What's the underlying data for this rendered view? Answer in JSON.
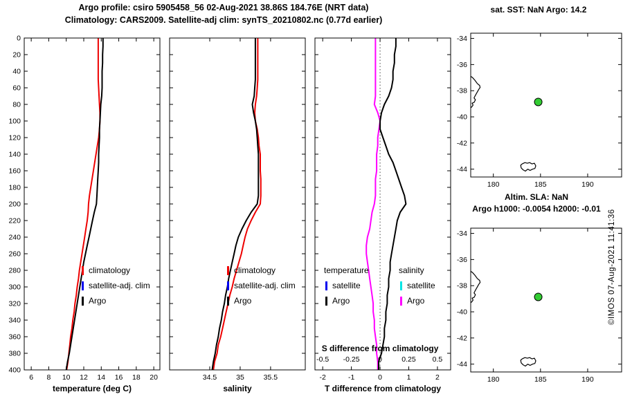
{
  "header": {
    "title1": "Argo profile: csiro 5905458_56 02-Aug-2021 38.86S 184.76E (NRT data)",
    "title2": "Climatology: CARS2009. Satellite-adj clim: synTS_20210802.nc (0.77d earlier)"
  },
  "footer": {
    "copyright": "©IMOS 07-Aug-2021 11:41:36"
  },
  "chart_data": [
    {
      "id": "temperature-profile",
      "type": "line",
      "xlabel": "temperature (deg C)",
      "xlim": [
        5.2,
        20.7
      ],
      "xticks": [
        6,
        8,
        10,
        12,
        14,
        16,
        18,
        20
      ],
      "ylim": [
        0,
        400
      ],
      "yticks": [
        0,
        20,
        40,
        60,
        80,
        100,
        120,
        140,
        160,
        180,
        200,
        220,
        240,
        260,
        280,
        300,
        320,
        340,
        360,
        380,
        400
      ],
      "show_ylabels": true,
      "depths": [
        0,
        10,
        20,
        30,
        40,
        50,
        60,
        70,
        80,
        90,
        100,
        110,
        120,
        130,
        140,
        150,
        160,
        170,
        180,
        190,
        200,
        210,
        220,
        230,
        240,
        250,
        260,
        270,
        280,
        290,
        300,
        310,
        320,
        330,
        340,
        350,
        360,
        370,
        380,
        390,
        400
      ],
      "series": [
        {
          "name": "climatology",
          "color": "#ee0000",
          "values": [
            13.65,
            13.65,
            13.65,
            13.65,
            13.65,
            13.65,
            13.7,
            13.75,
            13.8,
            13.85,
            13.85,
            13.8,
            13.7,
            13.55,
            13.4,
            13.25,
            13.1,
            12.95,
            12.8,
            12.65,
            12.55,
            12.5,
            12.4,
            12.25,
            12.1,
            11.95,
            11.8,
            11.65,
            11.5,
            11.4,
            11.25,
            11.15,
            11.0,
            10.9,
            10.75,
            10.65,
            10.5,
            10.4,
            10.3,
            10.2,
            10.05
          ]
        },
        {
          "name": "Argo",
          "color": "#000000",
          "values": [
            14.2,
            14.2,
            14.15,
            14.15,
            14.1,
            14.1,
            14.1,
            14.05,
            13.95,
            13.9,
            13.85,
            13.8,
            13.8,
            13.75,
            13.7,
            13.7,
            13.65,
            13.6,
            13.55,
            13.5,
            13.45,
            13.2,
            13.0,
            12.8,
            12.6,
            12.4,
            12.2,
            12.0,
            11.85,
            11.7,
            11.55,
            11.4,
            11.25,
            11.1,
            10.95,
            10.8,
            10.65,
            10.5,
            10.35,
            10.15,
            10.0
          ]
        }
      ],
      "legend": [
        {
          "label": "climatology",
          "color": "#ee0000"
        },
        {
          "label": "satellite-adj. clim",
          "color": "#0000ee"
        },
        {
          "label": "Argo",
          "color": "#000000"
        }
      ]
    },
    {
      "id": "salinity-profile",
      "type": "line",
      "xlabel": "salinity",
      "xlim": [
        33.84,
        36.07
      ],
      "xticks": [
        34.5,
        35,
        35.5
      ],
      "ylim": [
        0,
        400
      ],
      "yticks": [
        0,
        20,
        40,
        60,
        80,
        100,
        120,
        140,
        160,
        180,
        200,
        220,
        240,
        260,
        280,
        300,
        320,
        340,
        360,
        380,
        400
      ],
      "show_ylabels": false,
      "depths": [
        0,
        10,
        20,
        30,
        40,
        50,
        60,
        70,
        80,
        90,
        100,
        110,
        120,
        130,
        140,
        150,
        160,
        170,
        180,
        190,
        200,
        210,
        220,
        230,
        240,
        250,
        260,
        270,
        280,
        290,
        300,
        310,
        320,
        330,
        340,
        350,
        360,
        370,
        380,
        390,
        400
      ],
      "series": [
        {
          "name": "climatology",
          "color": "#ee0000",
          "values": [
            35.29,
            35.29,
            35.29,
            35.29,
            35.29,
            35.29,
            35.28,
            35.27,
            35.25,
            35.24,
            35.25,
            35.28,
            35.3,
            35.31,
            35.33,
            35.33,
            35.33,
            35.34,
            35.34,
            35.34,
            35.33,
            35.25,
            35.18,
            35.12,
            35.08,
            35.05,
            35.02,
            34.98,
            34.94,
            34.9,
            34.87,
            34.83,
            34.8,
            34.77,
            34.74,
            34.71,
            34.68,
            34.64,
            34.62,
            34.58,
            34.56
          ]
        },
        {
          "name": "Argo",
          "color": "#000000",
          "values": [
            35.25,
            35.25,
            35.25,
            35.25,
            35.25,
            35.25,
            35.24,
            35.23,
            35.2,
            35.22,
            35.25,
            35.27,
            35.28,
            35.29,
            35.3,
            35.3,
            35.3,
            35.3,
            35.3,
            35.3,
            35.28,
            35.18,
            35.1,
            35.03,
            34.97,
            34.93,
            34.9,
            34.87,
            34.84,
            34.81,
            34.79,
            34.76,
            34.74,
            34.71,
            34.69,
            34.66,
            34.64,
            34.61,
            34.59,
            34.56,
            34.54
          ]
        }
      ],
      "legend": [
        {
          "label": "climatology",
          "color": "#ee0000"
        },
        {
          "label": "satellite-adj. clim",
          "color": "#0000ee"
        },
        {
          "label": "Argo",
          "color": "#000000"
        }
      ]
    },
    {
      "id": "difference-profile",
      "type": "line",
      "xlabel": "T difference from climatology",
      "xlim": [
        -2.27,
        2.46
      ],
      "xticks": [
        -2,
        -1,
        0,
        1,
        2
      ],
      "ylim": [
        0,
        400
      ],
      "yticks": [
        0,
        20,
        40,
        60,
        80,
        100,
        120,
        140,
        160,
        180,
        200,
        220,
        240,
        260,
        280,
        300,
        320,
        340,
        360,
        380,
        400
      ],
      "show_ylabels": false,
      "zero_line": true,
      "secondary_axis": {
        "label": "S difference from climatology",
        "ticks": [
          -0.5,
          -0.25,
          0,
          0.25,
          0.5
        ],
        "scale": 4
      },
      "depths": [
        0,
        10,
        20,
        30,
        40,
        50,
        60,
        70,
        80,
        90,
        100,
        110,
        120,
        130,
        140,
        150,
        160,
        170,
        180,
        190,
        200,
        210,
        220,
        230,
        240,
        250,
        260,
        270,
        280,
        290,
        300,
        310,
        320,
        330,
        340,
        350,
        360,
        370,
        380,
        390,
        400
      ],
      "series": [
        {
          "name": "salinity Argo",
          "color": "#ff00ff",
          "scale": 4,
          "values": [
            -0.04,
            -0.04,
            -0.04,
            -0.04,
            -0.04,
            -0.04,
            -0.04,
            -0.04,
            -0.05,
            -0.02,
            0.0,
            -0.01,
            -0.02,
            -0.02,
            -0.03,
            -0.03,
            -0.03,
            -0.04,
            -0.04,
            -0.04,
            -0.05,
            -0.07,
            -0.08,
            -0.09,
            -0.11,
            -0.12,
            -0.12,
            -0.11,
            -0.1,
            -0.09,
            -0.08,
            -0.07,
            -0.06,
            -0.06,
            -0.05,
            -0.05,
            -0.04,
            -0.03,
            -0.03,
            -0.02,
            -0.02
          ]
        },
        {
          "name": "temperature Argo",
          "color": "#000000",
          "scale": 1,
          "values": [
            0.55,
            0.55,
            0.5,
            0.5,
            0.45,
            0.45,
            0.4,
            0.3,
            0.15,
            0.05,
            0.0,
            0.0,
            0.1,
            0.2,
            0.3,
            0.45,
            0.55,
            0.65,
            0.75,
            0.85,
            0.9,
            0.7,
            0.6,
            0.55,
            0.5,
            0.45,
            0.4,
            0.35,
            0.35,
            0.3,
            0.3,
            0.25,
            0.25,
            0.2,
            0.2,
            0.15,
            0.15,
            0.1,
            0.05,
            -0.05,
            -0.05
          ]
        }
      ],
      "legend": {
        "temperature": {
          "header": "temperature",
          "items": [
            {
              "label": "satellite",
              "color": "#0000ee"
            },
            {
              "label": "Argo",
              "color": "#000000"
            }
          ]
        },
        "salinity": {
          "header": "salinity",
          "items": [
            {
              "label": "satellite",
              "color": "#00e5e5"
            },
            {
              "label": "Argo",
              "color": "#ff00ff"
            }
          ]
        }
      }
    },
    {
      "id": "sst-map",
      "type": "map",
      "title": "sat. SST: NaN Argo: 14.2",
      "xlim": [
        177.6,
        193.6
      ],
      "ylim": [
        -33.6,
        -44.6
      ],
      "xticks": [
        180,
        185,
        190
      ],
      "yticks": [
        -34,
        -36,
        -38,
        -40,
        -42,
        -44
      ],
      "show_ylabels": true,
      "argo_marker": {
        "lon": 184.76,
        "lat": -38.86,
        "color": "#33cc33"
      },
      "coastlines": [
        [
          [
            177.6,
            -36.9
          ],
          [
            177.8,
            -37.0
          ],
          [
            178.05,
            -37.2
          ],
          [
            178.3,
            -37.45
          ],
          [
            178.55,
            -37.6
          ],
          [
            178.6,
            -37.75
          ],
          [
            178.45,
            -37.9
          ],
          [
            178.3,
            -38.1
          ],
          [
            178.1,
            -38.35
          ],
          [
            177.95,
            -38.55
          ],
          [
            178.1,
            -38.7
          ],
          [
            177.95,
            -38.9
          ],
          [
            177.75,
            -38.95
          ],
          [
            177.85,
            -39.1
          ],
          [
            177.7,
            -39.25
          ],
          [
            177.6,
            -39.3
          ]
        ],
        [
          [
            183.05,
            -43.6
          ],
          [
            183.35,
            -43.5
          ],
          [
            183.6,
            -43.55
          ],
          [
            183.85,
            -43.5
          ],
          [
            184.1,
            -43.6
          ],
          [
            184.35,
            -43.55
          ],
          [
            184.5,
            -43.75
          ],
          [
            184.4,
            -43.95
          ],
          [
            184.15,
            -44.0
          ],
          [
            183.9,
            -44.1
          ],
          [
            183.65,
            -44.0
          ],
          [
            183.4,
            -44.15
          ],
          [
            183.15,
            -44.05
          ],
          [
            182.95,
            -43.9
          ],
          [
            182.9,
            -43.7
          ],
          [
            183.05,
            -43.6
          ]
        ]
      ]
    },
    {
      "id": "sla-map",
      "type": "map",
      "title1": "Altim. SLA: NaN",
      "title2": "Argo h1000: -0.0054 h2000: -0.01",
      "xlim": [
        177.6,
        193.6
      ],
      "ylim": [
        -33.6,
        -44.6
      ],
      "xticks": [
        180,
        185,
        190
      ],
      "yticks": [
        -34,
        -36,
        -38,
        -40,
        -42,
        -44
      ],
      "show_ylabels": true,
      "argo_marker": {
        "lon": 184.76,
        "lat": -38.86,
        "color": "#33cc33"
      },
      "coastlines": [
        [
          [
            177.6,
            -36.9
          ],
          [
            177.8,
            -37.0
          ],
          [
            178.05,
            -37.2
          ],
          [
            178.3,
            -37.45
          ],
          [
            178.55,
            -37.6
          ],
          [
            178.6,
            -37.75
          ],
          [
            178.45,
            -37.9
          ],
          [
            178.3,
            -38.1
          ],
          [
            178.1,
            -38.35
          ],
          [
            177.95,
            -38.55
          ],
          [
            178.1,
            -38.7
          ],
          [
            177.95,
            -38.9
          ],
          [
            177.75,
            -38.95
          ],
          [
            177.85,
            -39.1
          ],
          [
            177.7,
            -39.25
          ],
          [
            177.6,
            -39.3
          ]
        ],
        [
          [
            183.05,
            -43.6
          ],
          [
            183.35,
            -43.5
          ],
          [
            183.6,
            -43.55
          ],
          [
            183.85,
            -43.5
          ],
          [
            184.1,
            -43.6
          ],
          [
            184.35,
            -43.55
          ],
          [
            184.5,
            -43.75
          ],
          [
            184.4,
            -43.95
          ],
          [
            184.15,
            -44.0
          ],
          [
            183.9,
            -44.1
          ],
          [
            183.65,
            -44.0
          ],
          [
            183.4,
            -44.15
          ],
          [
            183.15,
            -44.05
          ],
          [
            182.95,
            -43.9
          ],
          [
            182.9,
            -43.7
          ],
          [
            183.05,
            -43.6
          ]
        ]
      ]
    }
  ]
}
